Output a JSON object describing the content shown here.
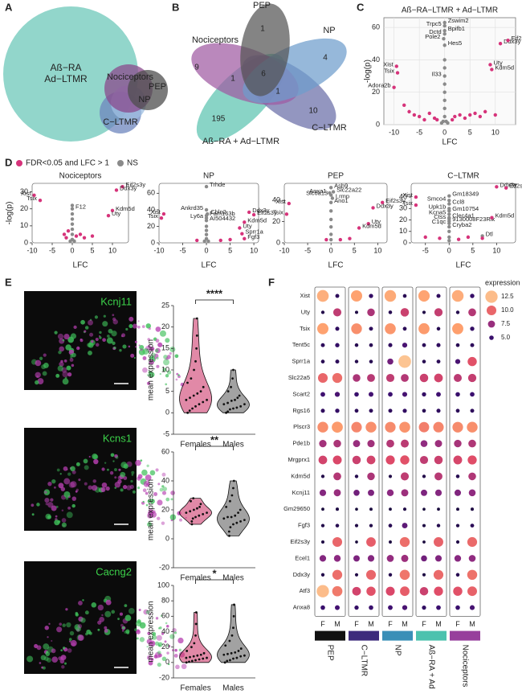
{
  "chart_data": [
    {
      "type": "euler",
      "panel": "A",
      "sets": [
        {
          "label": [
            "Aß−RA",
            "Ad−LTMR"
          ],
          "color": "#7fcfc2"
        },
        {
          "label": [
            "C−LTMR"
          ],
          "color": "#6d86bd"
        },
        {
          "label": [
            "NP"
          ],
          "color": "#9dbde0"
        },
        {
          "label": [
            "Nociceptors"
          ],
          "color": "#8a4a8c"
        },
        {
          "label": [
            "PEP"
          ],
          "color": "#4d4d4d"
        }
      ]
    },
    {
      "type": "venn",
      "panel": "B",
      "sets": [
        {
          "name": "Aß−RA + Ad−LTMR",
          "color": "#5cc4b0"
        },
        {
          "name": "C−LTMR",
          "color": "#6a6ea8"
        },
        {
          "name": "Nociceptors",
          "color": "#a05aa2"
        },
        {
          "name": "NP",
          "color": "#6e9ccc"
        },
        {
          "name": "PEP",
          "color": "#555555"
        }
      ],
      "counts": [
        1,
        4,
        9,
        1,
        6,
        1,
        10,
        195
      ]
    },
    {
      "type": "scatter",
      "panel": "C",
      "title": "Aß−RA−LTMR + Ad−LTMR",
      "xlabel": "LFC",
      "ylabel": "-log(p)",
      "xlim": [
        -12,
        14
      ],
      "ylim": [
        0,
        66
      ],
      "xticks": [
        -10,
        -5,
        0,
        5,
        10
      ],
      "yticks": [
        0,
        20,
        40,
        60
      ],
      "grid": true,
      "series": [
        {
          "color": "#8a8a8a",
          "x": [
            0,
            0,
            0,
            0,
            -0.2,
            0,
            0,
            0,
            0,
            0,
            0,
            0,
            0,
            0,
            0.3,
            -0.3,
            0.6,
            -0.6
          ],
          "values": [
            63,
            61,
            58,
            56,
            53,
            49,
            30,
            40,
            35,
            25,
            20,
            15,
            10,
            5,
            2,
            2,
            1,
            1
          ],
          "labels": [
            "Zswim2",
            "Trpc5",
            "Bpifb1",
            "Dctd",
            "Pole2",
            "Hes5",
            "Il33",
            null,
            null,
            null,
            null,
            null,
            null,
            null,
            null,
            null,
            null,
            null
          ]
        },
        {
          "color": "#d6337a",
          "x": [
            -10,
            -9.5,
            -9.3,
            -8,
            -7,
            -6,
            -5,
            -3,
            -2,
            2,
            3,
            4,
            5,
            6,
            7,
            8,
            9,
            9.3,
            11,
            12.5,
            10,
            -4,
            1.5,
            -1.5
          ],
          "values": [
            23,
            36,
            32,
            12,
            8,
            6,
            5,
            7,
            4,
            5,
            6,
            4,
            6,
            7,
            5,
            8,
            37,
            34,
            50,
            52,
            6,
            3,
            3,
            3
          ],
          "labels": [
            "Adora2b",
            "Xist",
            "Tsix",
            null,
            null,
            null,
            null,
            null,
            null,
            null,
            null,
            null,
            null,
            null,
            null,
            null,
            "Uty",
            "Kdm5d",
            "Ddx3y",
            "Eif2s3y",
            null,
            null,
            null,
            null
          ]
        }
      ]
    },
    {
      "type": "scatter",
      "panel": "D",
      "title": "Nociceptors",
      "xlabel": "LFC",
      "ylabel": "-log(p)",
      "legend": {
        "items": [
          {
            "name": "FDR<0.05 and LFC > 1",
            "color": "#d6337a"
          },
          {
            "name": "NS",
            "color": "#8a8a8a"
          }
        ]
      },
      "xlim": [
        -10,
        14
      ],
      "ylim": [
        0,
        35
      ],
      "xticks": [
        -10,
        -5,
        0,
        5,
        10
      ],
      "yticks": [
        0,
        10,
        20,
        30
      ],
      "series": [
        {
          "color": "#8a8a8a",
          "x": [
            0,
            0,
            0,
            0,
            0,
            0,
            0,
            0,
            0.5,
            -0.5
          ],
          "values": [
            20,
            22,
            17,
            14,
            11,
            8,
            5,
            2,
            1,
            1
          ],
          "labels": [
            "F12",
            null,
            null,
            null,
            null,
            null,
            null,
            null,
            null,
            null
          ]
        },
        {
          "color": "#d6337a",
          "x": [
            -9.5,
            -8,
            12.5,
            11,
            10,
            9,
            -1,
            -2,
            1,
            2,
            3,
            5,
            -1.5
          ],
          "values": [
            28,
            25,
            33,
            31,
            19,
            16,
            7,
            5,
            4,
            5,
            3,
            4,
            3
          ],
          "labels": [
            "Xist",
            "Tsix",
            "Eif2s3y",
            "Ddx3y",
            "Kdm5d",
            "Uty",
            null,
            null,
            null,
            null,
            null,
            null,
            null
          ]
        }
      ]
    },
    {
      "type": "scatter",
      "title": "NP",
      "xlabel": "LFC",
      "xlim": [
        -10,
        11
      ],
      "ylim": [
        0,
        72
      ],
      "xticks": [
        -10,
        -5,
        0,
        5,
        10
      ],
      "yticks": [
        0,
        20,
        40,
        60
      ],
      "series": [
        {
          "color": "#8a8a8a",
          "x": [
            0,
            0,
            0.2,
            0,
            0,
            0,
            0,
            0,
            0,
            0,
            0.4,
            -0.4
          ],
          "values": [
            68,
            40,
            35,
            33,
            30,
            27,
            20,
            15,
            10,
            5,
            2,
            2
          ],
          "labels": [
            "Trhde",
            "Ankrd35",
            "Cbln2",
            "Fam163b",
            "Ly6a",
            "AI504432",
            null,
            null,
            null,
            null,
            null,
            null
          ]
        },
        {
          "color": "#d6337a",
          "x": [
            -9,
            -9.5,
            9,
            10,
            8,
            7,
            7.5,
            8,
            3,
            5,
            -2
          ],
          "values": [
            35,
            30,
            37,
            34,
            25,
            18,
            11,
            5,
            3,
            4,
            3
          ],
          "labels": [
            "Xist",
            "Tsix",
            "Ddx3y",
            "Eif2s3y",
            "Kdm5d",
            "Uty",
            "Sprr1a",
            "Fgf3",
            null,
            null,
            null
          ]
        }
      ]
    },
    {
      "type": "scatter",
      "title": "PEP",
      "xlabel": "LFC",
      "xlim": [
        -10,
        12
      ],
      "ylim": [
        0,
        56
      ],
      "xticks": [
        -10,
        -5,
        0,
        5,
        10
      ],
      "yticks": [
        0,
        20,
        40
      ],
      "series": [
        {
          "color": "#8a8a8a",
          "x": [
            0,
            0.5,
            -0.3,
            0,
            0.3,
            0,
            0,
            0,
            0,
            0,
            0
          ],
          "values": [
            52,
            48,
            47,
            45,
            42,
            38,
            30,
            22,
            15,
            8,
            3
          ],
          "labels": [
            "Asb9",
            "Slc22a22",
            "Anxa1",
            "Slc6a13",
            "Lrmp",
            "Ano1",
            null,
            null,
            null,
            null,
            null
          ]
        },
        {
          "color": "#d6337a",
          "x": [
            -9,
            -9.5,
            11,
            9,
            8,
            6,
            2,
            4,
            -1
          ],
          "values": [
            37,
            27,
            38,
            33,
            18,
            14,
            3,
            4,
            3
          ],
          "labels": [
            "Xist",
            "Tsix",
            "Eif2s3y",
            "Ddx3y",
            "Uty",
            "Kdm5d",
            null,
            null,
            null
          ]
        }
      ]
    },
    {
      "type": "scatter",
      "title": "C−LTMR",
      "xlabel": "LFC",
      "xlim": [
        -8,
        14
      ],
      "ylim": [
        0,
        52
      ],
      "xticks": [
        -5,
        0,
        5,
        10
      ],
      "yticks": [
        0,
        10,
        20,
        30,
        40
      ],
      "series": [
        {
          "color": "#8a8a8a",
          "x": [
            0,
            0,
            0,
            0,
            0,
            0,
            0,
            0,
            0,
            0,
            0,
            7,
            0,
            0,
            0
          ],
          "values": [
            41,
            37,
            34,
            30,
            28,
            25,
            22,
            21,
            19,
            17,
            14,
            6,
            10,
            5,
            2
          ],
          "labels": [
            "Gm18349",
            "Smco4",
            "Ccl8",
            "Upk1b",
            "Gm10754",
            "Kcna5",
            "Clec4a1",
            "Ctss",
            "9130008F23Rik",
            "C1qc",
            "Cryba2",
            "Dtl",
            null,
            null,
            null
          ]
        },
        {
          "color": "#d6337a",
          "x": [
            -7,
            -7,
            10,
            12,
            9,
            -5,
            -2,
            2,
            4,
            7
          ],
          "values": [
            40,
            33,
            49,
            48,
            22,
            5,
            4,
            3,
            5,
            4
          ],
          "labels": [
            "Xist",
            "Tsix",
            "Ddx3y",
            "Eif2s3y",
            "Kdm5d",
            null,
            null,
            null,
            null,
            null
          ]
        }
      ]
    },
    {
      "type": "violin",
      "panel": "E",
      "image_label": "Kcnj11",
      "ylabel": "mean expression",
      "significance": "****",
      "categories": [
        "Females",
        "Males"
      ],
      "colors": [
        "#c8285e",
        "#555555"
      ],
      "ylim": [
        -5,
        25
      ],
      "yticks": [
        -5,
        0,
        5,
        10,
        15,
        20,
        25
      ],
      "values": [
        [
          0,
          0.5,
          1,
          1.5,
          2,
          2.5,
          3,
          3,
          3.5,
          4,
          4.5,
          5,
          6,
          7,
          8,
          10,
          12,
          15,
          18,
          22
        ],
        [
          0,
          0.3,
          0.8,
          1,
          1.2,
          1.5,
          2,
          2,
          2.3,
          2.8,
          3,
          3.5,
          4,
          5,
          6,
          8,
          10
        ]
      ]
    },
    {
      "type": "violin",
      "image_label": "Kcns1",
      "ylabel": "mean expression",
      "significance": "**",
      "categories": [
        "Females",
        "Males"
      ],
      "colors": [
        "#c8285e",
        "#555555"
      ],
      "ylim": [
        -20,
        60
      ],
      "yticks": [
        -20,
        0,
        20,
        40,
        60
      ],
      "values": [
        [
          10,
          12,
          14,
          15,
          16,
          17,
          18,
          18,
          19,
          20,
          21,
          22,
          24,
          26,
          28
        ],
        [
          2,
          5,
          8,
          10,
          11,
          12,
          13,
          14,
          15,
          15,
          16,
          18,
          20,
          22,
          26,
          30,
          35,
          40
        ]
      ]
    },
    {
      "type": "violin",
      "image_label": "Cacng2",
      "ylabel": "mean expression",
      "significance": "*",
      "categories": [
        "Females",
        "Males"
      ],
      "colors": [
        "#c8285e",
        "#555555"
      ],
      "ylim": [
        -20,
        100
      ],
      "yticks": [
        -20,
        0,
        20,
        40,
        60,
        80,
        100
      ],
      "values": [
        [
          0,
          1,
          2,
          3,
          4,
          5,
          6,
          6,
          7,
          8,
          9,
          10,
          12,
          15,
          20,
          25,
          35,
          50,
          65
        ],
        [
          0,
          2,
          3,
          5,
          6,
          8,
          9,
          10,
          11,
          12,
          13,
          15,
          18,
          22,
          28,
          35,
          45,
          60,
          75
        ]
      ]
    },
    {
      "type": "dotplot",
      "panel": "F",
      "rows": [
        "Xist",
        "Uty",
        "Tsix",
        "Tent5c",
        "Sprr1a",
        "Slc22a5",
        "Scart2",
        "Rgs16",
        "Plscr3",
        "Pde1b",
        "Mrgprx1",
        "Kdm5d",
        "Kcnj11",
        "Gm29650",
        "Fgf3",
        "Eif2s3y",
        "Ecel1",
        "Ddx3y",
        "Atf3",
        "Anxa8"
      ],
      "columns": [
        "F",
        "M"
      ],
      "groups": [
        {
          "name": "PEP",
          "color": "#111111"
        },
        {
          "name": "C−LTMR",
          "color": "#3d2b7c"
        },
        {
          "name": "NP",
          "color": "#3a8fb7"
        },
        {
          "name": "Aß−RA + Ad",
          "color": "#4cc2ae"
        },
        {
          "name": "Nociceptors",
          "color": "#973f9c"
        }
      ],
      "values": [
        [
          12,
          4.5,
          11.5,
          4.8,
          11.8,
          4.3,
          11.6,
          4.6,
          11.9,
          4.9
        ],
        [
          4,
          8.5,
          3.8,
          8,
          4.2,
          8.8,
          3.9,
          8.6,
          4.1,
          8.2
        ],
        [
          11.5,
          4.6,
          11,
          4.5,
          11.2,
          4.4,
          11.3,
          4.2,
          11.4,
          4.8
        ],
        [
          4.5,
          4.8,
          4.2,
          4.3,
          4.6,
          5.5,
          4.4,
          4.6,
          4.3,
          4.5
        ],
        [
          4.3,
          4.5,
          4.1,
          4.2,
          6.5,
          12.8,
          4.2,
          4.4,
          5.5,
          9.5
        ],
        [
          10,
          10.2,
          8,
          8.3,
          8.5,
          8.2,
          8.8,
          9,
          8.4,
          8.6
        ],
        [
          5.2,
          5.5,
          5,
          5.3,
          5.1,
          5.4,
          4.8,
          5.2,
          5,
          5.1
        ],
        [
          4.6,
          4.8,
          4.4,
          4.5,
          4.5,
          4.7,
          4.3,
          4.6,
          4.4,
          4.5
        ],
        [
          11,
          11.3,
          10.8,
          11,
          10.9,
          11.1,
          10.6,
          10.8,
          10.9,
          11
        ],
        [
          7.8,
          8,
          7.5,
          7.7,
          8.2,
          8.4,
          7.3,
          7.6,
          7.9,
          8.1
        ],
        [
          9,
          9.2,
          8.8,
          9,
          9.3,
          9.5,
          8.5,
          8.8,
          9.1,
          9.4
        ],
        [
          4,
          8.2,
          4.1,
          8,
          3.9,
          8.5,
          4,
          8.3,
          4.2,
          8.1
        ],
        [
          7,
          7.5,
          6.5,
          6.8,
          7.2,
          7.6,
          6.8,
          7,
          6.9,
          7.3
        ],
        [
          3.6,
          3.8,
          3.5,
          3.7,
          3.6,
          3.9,
          3.5,
          3.6,
          3.7,
          3.8
        ],
        [
          4,
          4.2,
          3.9,
          4,
          4.3,
          6,
          3.8,
          4.1,
          4,
          4.4
        ],
        [
          3.8,
          10,
          3.5,
          9.8,
          3.7,
          10.2,
          3.6,
          9.9,
          3.9,
          10.1
        ],
        [
          7,
          7.2,
          6.8,
          7,
          7.4,
          7.6,
          6.5,
          6.9,
          7.1,
          7.3
        ],
        [
          4,
          10.2,
          3.9,
          10,
          4.1,
          10.4,
          3.8,
          10.1,
          4.2,
          10.3
        ],
        [
          12.5,
          10.5,
          9,
          9.5,
          9.2,
          9.8,
          8.8,
          9.4,
          9.5,
          9.9
        ],
        [
          5,
          5.3,
          4.8,
          5,
          5.2,
          5.5,
          4.7,
          5.1,
          5,
          5.4
        ]
      ],
      "legend_title": "expression",
      "legend_ticks": [
        12.5,
        {
          "value": 10,
          "label": "10.0"
        },
        7.5,
        {
          "value": 5,
          "label": "5.0"
        }
      ],
      "clim": [
        3,
        13.5
      ],
      "colors": [
        "#0d0829",
        "#3b0f6f",
        "#8c2981",
        "#de4968",
        "#fe9f6d",
        "#fbd7a4"
      ]
    }
  ]
}
